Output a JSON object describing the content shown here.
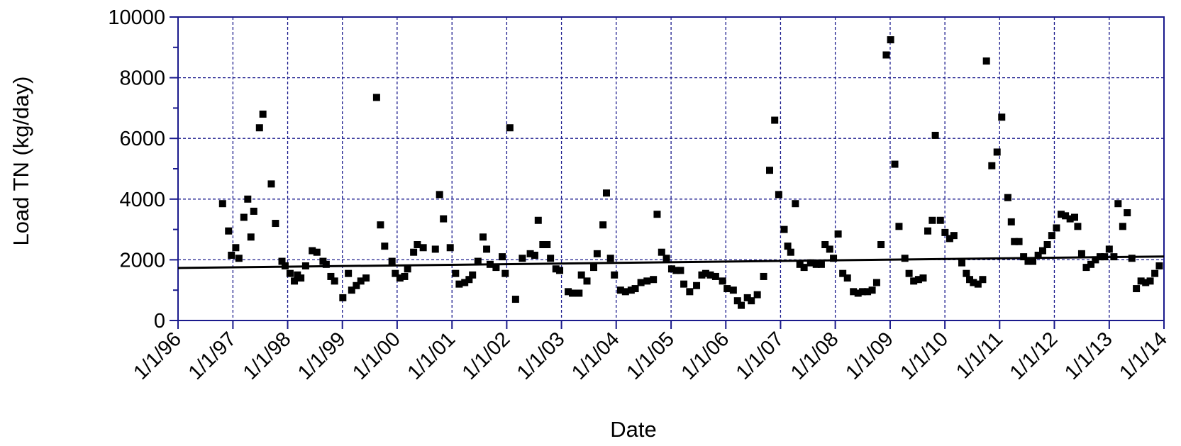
{
  "chart_data": {
    "type": "scatter",
    "title": "",
    "xlabel": "Date",
    "ylabel": "Load TN (kg/day)",
    "xlim": [
      "1996-01-01",
      "2014-01-01"
    ],
    "ylim": [
      0,
      10000
    ],
    "grid": true,
    "legend": "none",
    "x_tick_labels": [
      "1/1/96",
      "1/1/97",
      "1/1/98",
      "1/1/99",
      "1/1/00",
      "1/1/01",
      "1/1/02",
      "1/1/03",
      "1/1/04",
      "1/1/05",
      "1/1/06",
      "1/1/07",
      "1/1/08",
      "1/1/09",
      "1/1/10",
      "1/1/11",
      "1/1/12",
      "1/1/13",
      "1/1/14"
    ],
    "y_tick_labels": [
      "0",
      "2000",
      "4000",
      "6000",
      "8000",
      "10000"
    ],
    "colors": {
      "axis": "#1a1a8c",
      "grid": "#1a1a8c",
      "points": "#000000",
      "trend": "#000000"
    },
    "series": [
      {
        "type": "scatter",
        "points": [
          [
            "1996-10-24",
            3850
          ],
          [
            "1996-12-03",
            2950
          ],
          [
            "1996-12-22",
            2150
          ],
          [
            "1997-01-20",
            2400
          ],
          [
            "1997-02-10",
            2050
          ],
          [
            "1997-03-15",
            3400
          ],
          [
            "1997-04-10",
            4000
          ],
          [
            "1997-05-01",
            2750
          ],
          [
            "1997-05-20",
            3600
          ],
          [
            "1997-06-27",
            6350
          ],
          [
            "1997-07-20",
            6800
          ],
          [
            "1997-09-14",
            4500
          ],
          [
            "1997-10-12",
            3200
          ],
          [
            "1997-11-24",
            1950
          ],
          [
            "1997-12-15",
            1800
          ],
          [
            "1998-01-17",
            1550
          ],
          [
            "1998-02-15",
            1300
          ],
          [
            "1998-03-07",
            1500
          ],
          [
            "1998-03-30",
            1400
          ],
          [
            "1998-05-01",
            1800
          ],
          [
            "1998-06-14",
            2300
          ],
          [
            "1998-07-15",
            2250
          ],
          [
            "1998-08-25",
            1950
          ],
          [
            "1998-09-15",
            1850
          ],
          [
            "1998-10-16",
            1450
          ],
          [
            "1998-11-10",
            1300
          ],
          [
            "1999-01-04",
            750
          ],
          [
            "1999-02-10",
            1550
          ],
          [
            "1999-03-04",
            1000
          ],
          [
            "1999-04-04",
            1150
          ],
          [
            "1999-05-04",
            1300
          ],
          [
            "1999-06-08",
            1400
          ],
          [
            "1999-08-17",
            7350
          ],
          [
            "1999-09-12",
            3150
          ],
          [
            "1999-10-10",
            2450
          ],
          [
            "1999-11-28",
            1950
          ],
          [
            "1999-12-20",
            1550
          ],
          [
            "2000-01-20",
            1400
          ],
          [
            "2000-02-20",
            1450
          ],
          [
            "2000-03-11",
            1700
          ],
          [
            "2000-04-20",
            2250
          ],
          [
            "2000-05-15",
            2500
          ],
          [
            "2000-06-23",
            2400
          ],
          [
            "2000-09-12",
            2350
          ],
          [
            "2000-10-10",
            4150
          ],
          [
            "2000-11-05",
            3350
          ],
          [
            "2000-12-20",
            2400
          ],
          [
            "2001-01-25",
            1550
          ],
          [
            "2001-02-18",
            1200
          ],
          [
            "2001-03-27",
            1250
          ],
          [
            "2001-04-25",
            1350
          ],
          [
            "2001-05-18",
            1500
          ],
          [
            "2001-06-23",
            1950
          ],
          [
            "2001-07-27",
            2750
          ],
          [
            "2001-08-20",
            2350
          ],
          [
            "2001-09-12",
            1850
          ],
          [
            "2001-10-22",
            1750
          ],
          [
            "2001-12-02",
            2100
          ],
          [
            "2001-12-22",
            1550
          ],
          [
            "2002-01-22",
            6350
          ],
          [
            "2002-03-01",
            700
          ],
          [
            "2002-04-15",
            2050
          ],
          [
            "2002-06-07",
            2200
          ],
          [
            "2002-07-07",
            2150
          ],
          [
            "2002-07-30",
            3300
          ],
          [
            "2002-08-30",
            2500
          ],
          [
            "2002-09-27",
            2500
          ],
          [
            "2002-10-20",
            2050
          ],
          [
            "2002-11-25",
            1700
          ],
          [
            "2002-12-20",
            1650
          ],
          [
            "2003-02-15",
            950
          ],
          [
            "2003-03-15",
            900
          ],
          [
            "2003-04-28",
            900
          ],
          [
            "2003-05-14",
            1500
          ],
          [
            "2003-06-20",
            1300
          ],
          [
            "2003-08-04",
            1750
          ],
          [
            "2003-08-27",
            2200
          ],
          [
            "2003-10-05",
            3150
          ],
          [
            "2003-10-28",
            4200
          ],
          [
            "2003-11-24",
            2050
          ],
          [
            "2003-12-20",
            1500
          ],
          [
            "2004-01-30",
            1000
          ],
          [
            "2004-03-03",
            950
          ],
          [
            "2004-04-10",
            1000
          ],
          [
            "2004-05-07",
            1050
          ],
          [
            "2004-06-14",
            1250
          ],
          [
            "2004-07-25",
            1300
          ],
          [
            "2004-09-05",
            1350
          ],
          [
            "2004-09-30",
            3500
          ],
          [
            "2004-10-30",
            2250
          ],
          [
            "2004-12-01",
            2050
          ],
          [
            "2005-01-05",
            1700
          ],
          [
            "2005-02-04",
            1650
          ],
          [
            "2005-03-05",
            1650
          ],
          [
            "2005-03-27",
            1200
          ],
          [
            "2005-05-05",
            950
          ],
          [
            "2005-06-20",
            1150
          ],
          [
            "2005-07-25",
            1500
          ],
          [
            "2005-08-20",
            1550
          ],
          [
            "2005-09-20",
            1500
          ],
          [
            "2005-10-25",
            1450
          ],
          [
            "2005-12-10",
            1300
          ],
          [
            "2006-01-10",
            1050
          ],
          [
            "2006-02-20",
            1000
          ],
          [
            "2006-03-20",
            650
          ],
          [
            "2006-04-14",
            500
          ],
          [
            "2006-05-25",
            750
          ],
          [
            "2006-06-20",
            650
          ],
          [
            "2006-07-30",
            850
          ],
          [
            "2006-09-10",
            1450
          ],
          [
            "2006-10-20",
            4950
          ],
          [
            "2006-11-23",
            6600
          ],
          [
            "2006-12-20",
            4150
          ],
          [
            "2007-01-25",
            3000
          ],
          [
            "2007-02-18",
            2450
          ],
          [
            "2007-03-10",
            2250
          ],
          [
            "2007-04-10",
            3850
          ],
          [
            "2007-05-10",
            1850
          ],
          [
            "2007-06-07",
            1750
          ],
          [
            "2007-07-20",
            1900
          ],
          [
            "2007-08-27",
            1850
          ],
          [
            "2007-09-30",
            1850
          ],
          [
            "2007-10-25",
            2500
          ],
          [
            "2007-11-25",
            2350
          ],
          [
            "2007-12-20",
            2050
          ],
          [
            "2008-01-20",
            2850
          ],
          [
            "2008-02-20",
            1550
          ],
          [
            "2008-03-22",
            1400
          ],
          [
            "2008-05-01",
            950
          ],
          [
            "2008-06-01",
            900
          ],
          [
            "2008-07-01",
            950
          ],
          [
            "2008-08-03",
            950
          ],
          [
            "2008-09-03",
            1000
          ],
          [
            "2008-10-03",
            1250
          ],
          [
            "2008-11-01",
            2500
          ],
          [
            "2008-12-06",
            8750
          ],
          [
            "2009-01-04",
            9250
          ],
          [
            "2009-02-01",
            5150
          ],
          [
            "2009-03-01",
            3100
          ],
          [
            "2009-04-09",
            2050
          ],
          [
            "2009-05-07",
            1550
          ],
          [
            "2009-06-07",
            1300
          ],
          [
            "2009-07-09",
            1350
          ],
          [
            "2009-08-09",
            1400
          ],
          [
            "2009-09-09",
            2950
          ],
          [
            "2009-10-09",
            3300
          ],
          [
            "2009-10-29",
            6100
          ],
          [
            "2009-12-02",
            3300
          ],
          [
            "2010-01-02",
            2900
          ],
          [
            "2010-02-02",
            2700
          ],
          [
            "2010-03-02",
            2800
          ],
          [
            "2010-04-24",
            1900
          ],
          [
            "2010-05-24",
            1550
          ],
          [
            "2010-06-15",
            1350
          ],
          [
            "2010-07-10",
            1250
          ],
          [
            "2010-08-10",
            1200
          ],
          [
            "2010-09-10",
            1350
          ],
          [
            "2010-10-05",
            8550
          ],
          [
            "2010-11-10",
            5100
          ],
          [
            "2010-12-15",
            5550
          ],
          [
            "2011-01-15",
            6700
          ],
          [
            "2011-02-25",
            4050
          ],
          [
            "2011-03-20",
            3250
          ],
          [
            "2011-04-10",
            2600
          ],
          [
            "2011-05-10",
            2600
          ],
          [
            "2011-06-10",
            2100
          ],
          [
            "2011-07-10",
            1950
          ],
          [
            "2011-08-10",
            1950
          ],
          [
            "2011-09-15",
            2150
          ],
          [
            "2011-10-15",
            2300
          ],
          [
            "2011-11-15",
            2500
          ],
          [
            "2011-12-15",
            2800
          ],
          [
            "2012-01-15",
            3050
          ],
          [
            "2012-02-15",
            3500
          ],
          [
            "2012-03-15",
            3450
          ],
          [
            "2012-04-15",
            3350
          ],
          [
            "2012-05-15",
            3400
          ],
          [
            "2012-06-05",
            3100
          ],
          [
            "2012-07-01",
            2200
          ],
          [
            "2012-08-01",
            1750
          ],
          [
            "2012-09-01",
            1850
          ],
          [
            "2012-10-01",
            2000
          ],
          [
            "2012-11-01",
            2100
          ],
          [
            "2012-12-01",
            2100
          ],
          [
            "2013-01-01",
            2350
          ],
          [
            "2013-02-01",
            2100
          ],
          [
            "2013-03-01",
            3850
          ],
          [
            "2013-04-01",
            3100
          ],
          [
            "2013-05-01",
            3550
          ],
          [
            "2013-06-01",
            2050
          ],
          [
            "2013-07-01",
            1050
          ],
          [
            "2013-08-01",
            1300
          ],
          [
            "2013-09-01",
            1250
          ],
          [
            "2013-10-01",
            1300
          ],
          [
            "2013-11-01",
            1550
          ],
          [
            "2013-12-01",
            1800
          ]
        ]
      },
      {
        "type": "line",
        "points": [
          [
            "1996-01-01",
            1730
          ],
          [
            "2014-01-01",
            2110
          ]
        ]
      }
    ]
  }
}
